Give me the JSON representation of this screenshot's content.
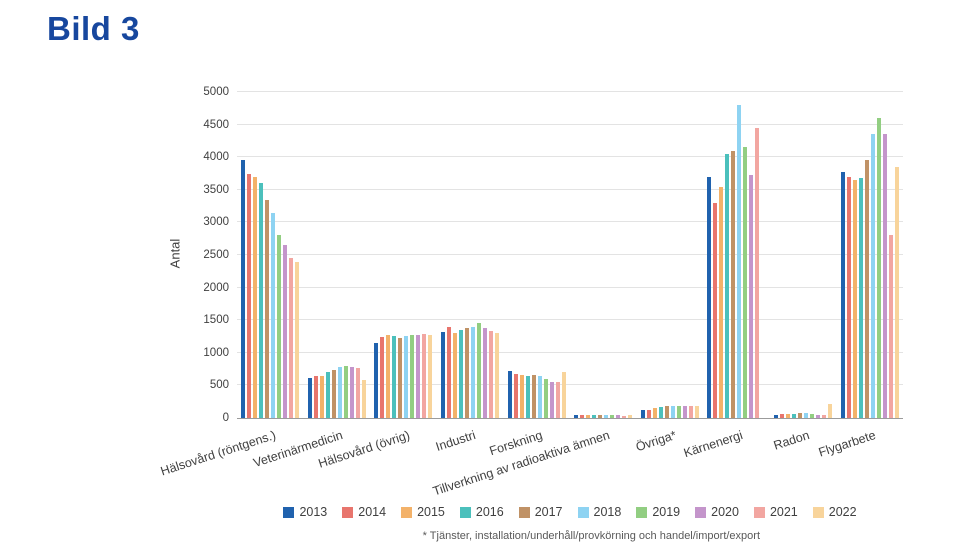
{
  "page": {
    "title": "Bild 3"
  },
  "footnote": "* Tjänster, installation/underhåll/provkörning och handel/import/export",
  "chart_data": {
    "type": "bar",
    "title": "",
    "xlabel": "",
    "ylabel": "Antal",
    "ylim": [
      0,
      5000
    ],
    "ytick_step": 500,
    "grid": true,
    "legend_position": "bottom",
    "categories": [
      "Hälsovård (röntgens.)",
      "Veterinärmedicin",
      "Hälsovård (övrig)",
      "Industri",
      "Forskning",
      "Tillverkning av radioaktiva ämnen",
      "Övriga*",
      "Kärnenergi",
      "Radon",
      "Flygarbete"
    ],
    "series": [
      {
        "name": "2013",
        "color": "#2062AE",
        "values": [
          3950,
          620,
          1150,
          1320,
          720,
          50,
          120,
          3700,
          50,
          3780
        ]
      },
      {
        "name": "2014",
        "color": "#E8756D",
        "values": [
          3750,
          640,
          1250,
          1390,
          680,
          40,
          130,
          3300,
          60,
          3700
        ]
      },
      {
        "name": "2015",
        "color": "#F3B26A",
        "values": [
          3700,
          650,
          1280,
          1300,
          660,
          40,
          150,
          3550,
          55,
          3650
        ]
      },
      {
        "name": "2016",
        "color": "#4BC0BC",
        "values": [
          3600,
          700,
          1260,
          1350,
          650,
          50,
          170,
          4050,
          60,
          3680
        ]
      },
      {
        "name": "2017",
        "color": "#C09266",
        "values": [
          3350,
          730,
          1230,
          1380,
          660,
          40,
          180,
          4100,
          80,
          3950
        ]
      },
      {
        "name": "2018",
        "color": "#8ED3F2",
        "values": [
          3150,
          780,
          1260,
          1400,
          640,
          40,
          190,
          4800,
          70,
          4350
        ]
      },
      {
        "name": "2019",
        "color": "#92CE82",
        "values": [
          2800,
          800,
          1270,
          1450,
          600,
          50,
          180,
          4150,
          60,
          4600
        ]
      },
      {
        "name": "2020",
        "color": "#C495CB",
        "values": [
          2650,
          780,
          1280,
          1380,
          560,
          40,
          185,
          3720,
          50,
          4350
        ]
      },
      {
        "name": "2021",
        "color": "#F2A6A1",
        "values": [
          2450,
          760,
          1290,
          1330,
          560,
          30,
          190,
          4450,
          40,
          2800
        ]
      },
      {
        "name": "2022",
        "color": "#F8D49B",
        "values": [
          2400,
          580,
          1270,
          1300,
          700,
          50,
          190,
          0,
          220,
          3850
        ]
      }
    ]
  }
}
